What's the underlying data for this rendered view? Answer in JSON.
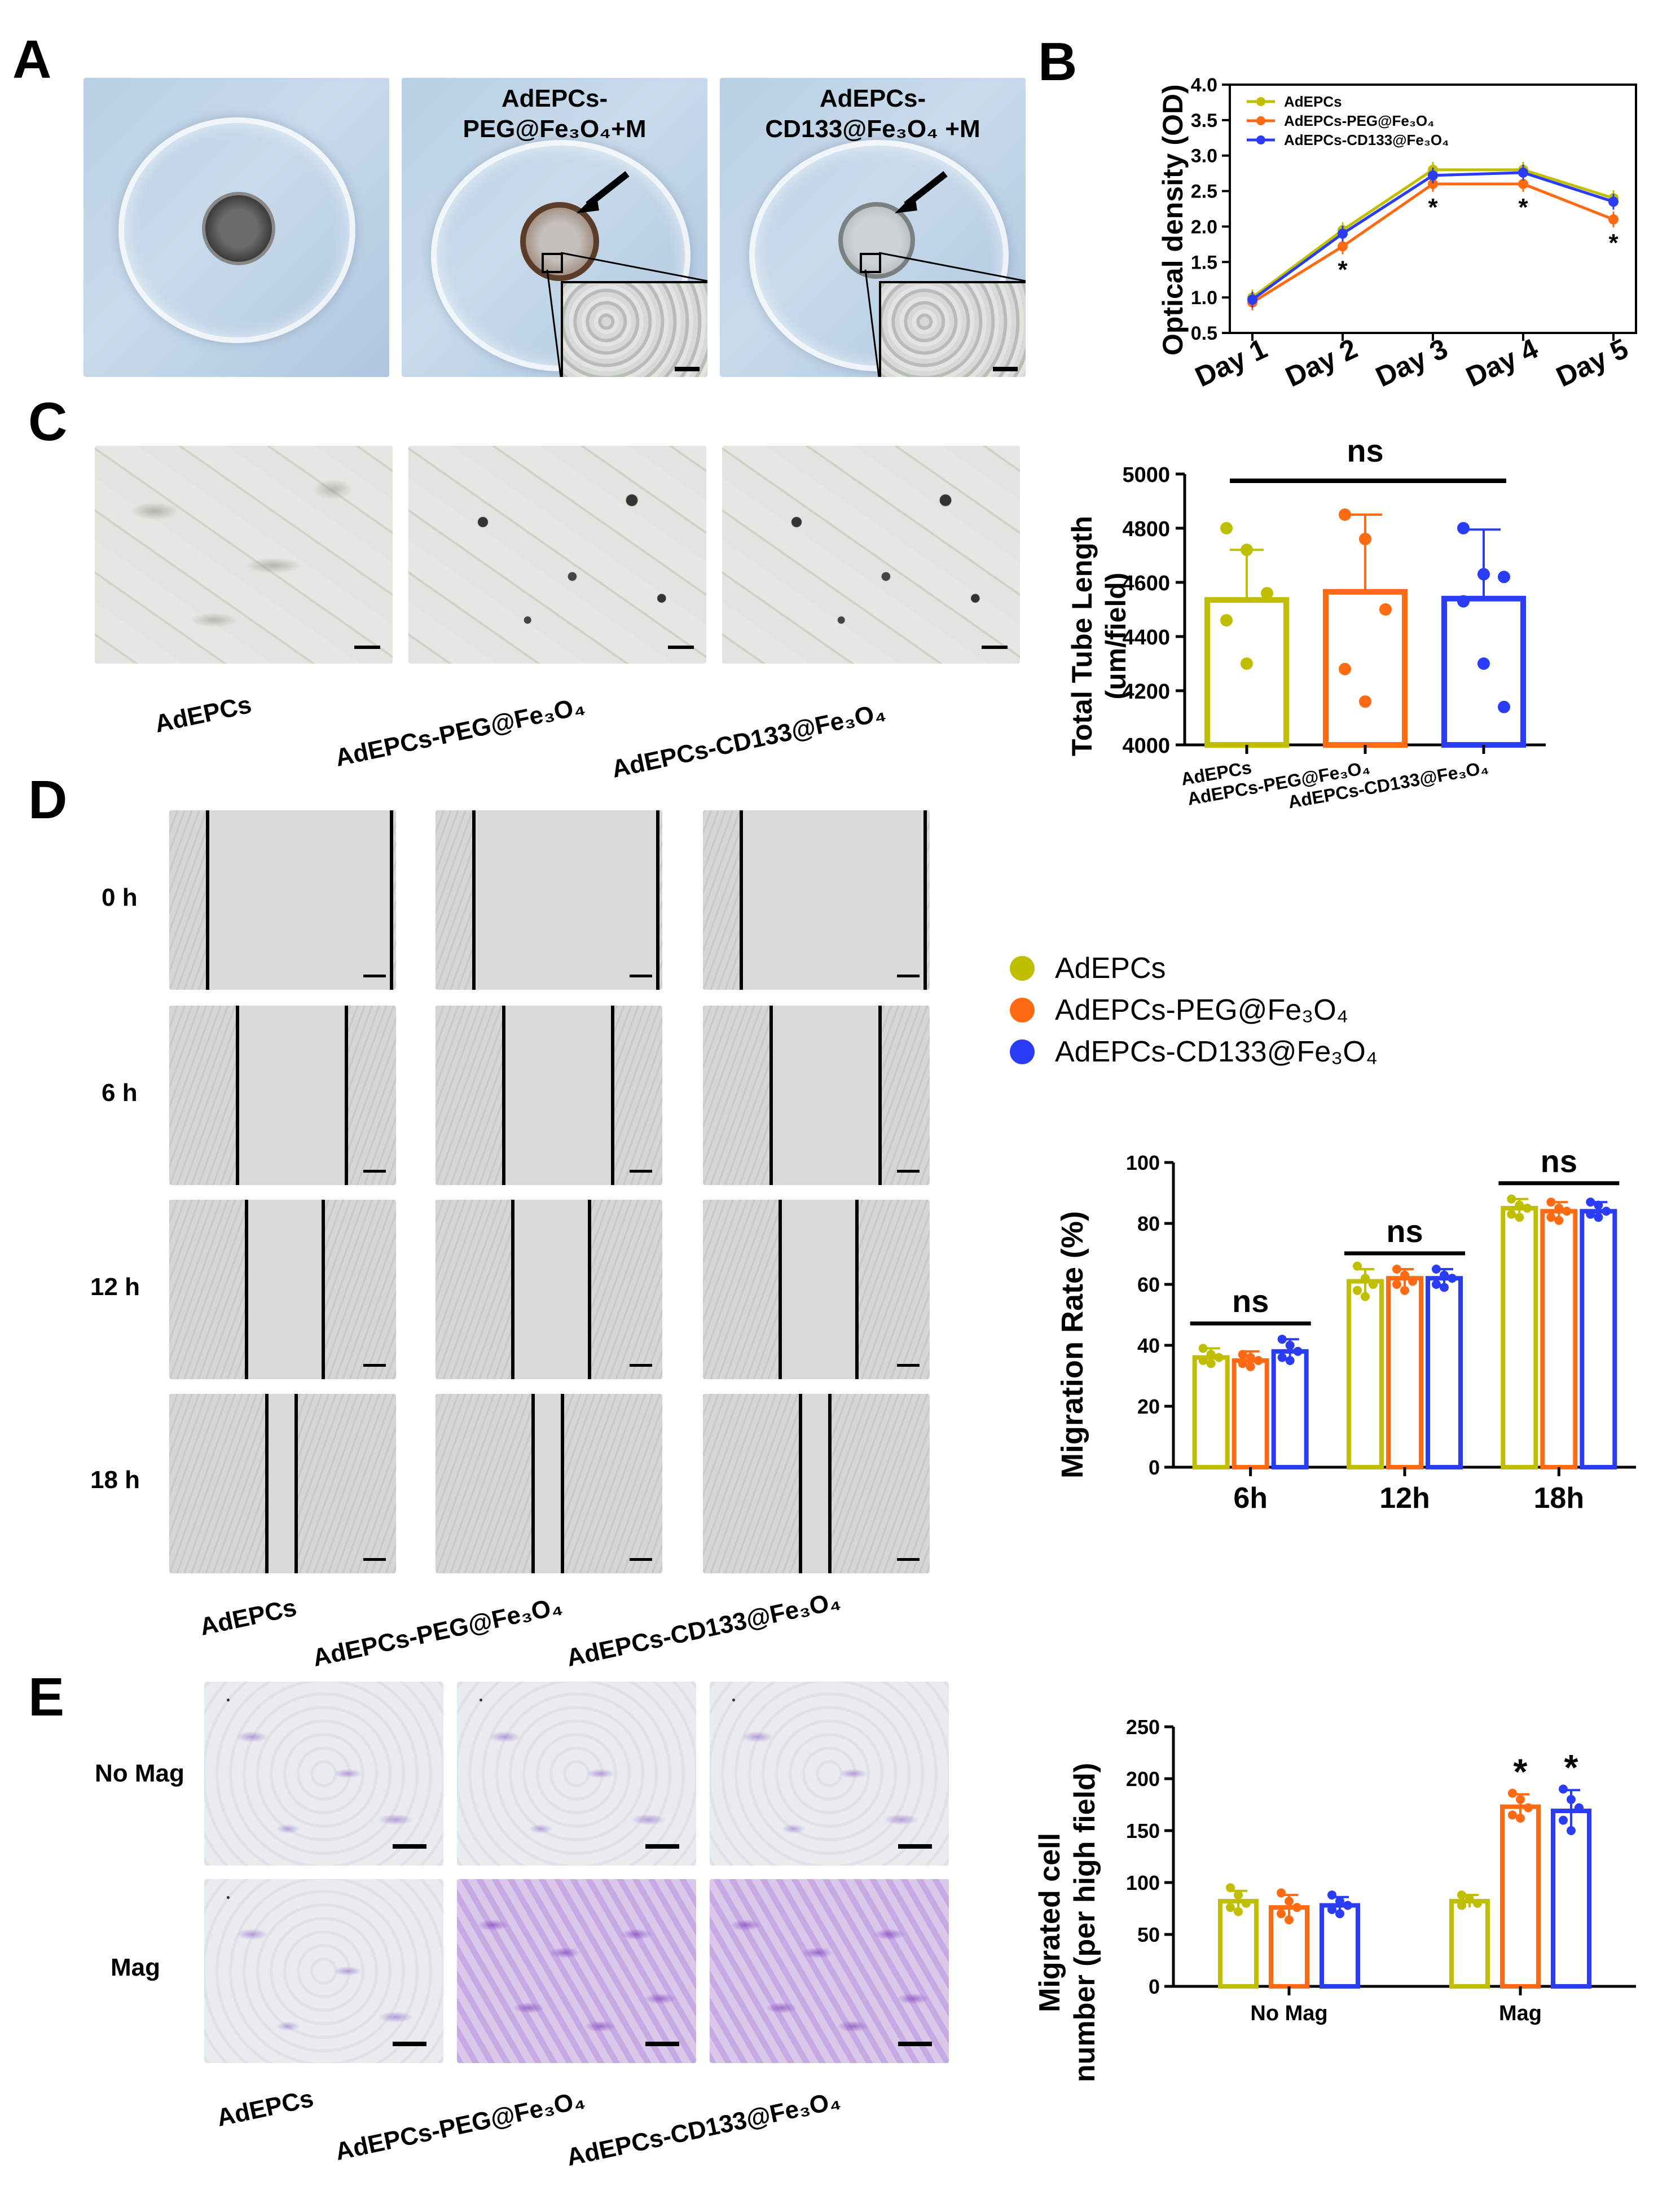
{
  "panels": {
    "A": "A",
    "B": "B",
    "C": "C",
    "D": "D",
    "E": "E"
  },
  "colors": {
    "adepcs": "#bfbf00",
    "peg": "#ff6a13",
    "cd133": "#2a3cf5"
  },
  "panelA": {
    "peg_title_line1": "AdEPCs-",
    "peg_title_line2": "PEG@Fe₃O₄+M",
    "cd133_title_line1": "AdEPCs-",
    "cd133_title_line2": "CD133@Fe₃O₄ +M"
  },
  "groups": {
    "adepcs": "AdEPCs",
    "peg": "AdEPCs-PEG@Fe₃O₄",
    "cd133": "AdEPCs-CD133@Fe₃O₄"
  },
  "panelD": {
    "rows": [
      "0 h",
      "6 h",
      "12 h",
      "18 h"
    ]
  },
  "panelE": {
    "rows": [
      "No Mag",
      "Mag"
    ]
  },
  "chart_data": [
    {
      "id": "B",
      "type": "line",
      "ylabel": "Optical density (OD)",
      "ylim": [
        0.5,
        4.0
      ],
      "yticks": [
        "0.5",
        "1.0",
        "1.5",
        "2.0",
        "2.5",
        "3.0",
        "3.5",
        "4.0"
      ],
      "categories": [
        "Day 1",
        "Day 2",
        "Day 3",
        "Day 4",
        "Day 5"
      ],
      "series": [
        {
          "name": "AdEPCs",
          "values": [
            1.0,
            1.95,
            2.8,
            2.8,
            2.4
          ]
        },
        {
          "name": "AdEPCs-PEG@Fe₃O₄",
          "values": [
            0.93,
            1.72,
            2.6,
            2.6,
            2.1
          ]
        },
        {
          "name": "AdEPCs-CD133@Fe₃O₄",
          "values": [
            0.97,
            1.9,
            2.72,
            2.76,
            2.35
          ]
        }
      ],
      "annotations": [
        {
          "category": "Day 2",
          "text": "*"
        },
        {
          "category": "Day 3",
          "text": "*"
        },
        {
          "category": "Day 4",
          "text": "*"
        },
        {
          "category": "Day 5",
          "text": "*"
        }
      ],
      "legend": "top-left"
    },
    {
      "id": "C",
      "type": "bar",
      "ylabel_line1": "Total Tube Length",
      "ylabel_line2": "(um/field)",
      "ylim": [
        4000,
        5000
      ],
      "yticks": [
        "4000",
        "4200",
        "4400",
        "4600",
        "4800",
        "5000"
      ],
      "categories": [
        "AdEPCs",
        "AdEPCs-PEG@Fe₃O₄",
        "AdEPCs-CD133@Fe₃O₄"
      ],
      "values": [
        4535,
        4565,
        4540
      ],
      "errors": [
        185,
        285,
        255
      ],
      "points": [
        [
          4800,
          4720,
          4560,
          4460,
          4300
        ],
        [
          4850,
          4760,
          4500,
          4280,
          4160
        ],
        [
          4800,
          4630,
          4620,
          4530,
          4300,
          4140
        ]
      ],
      "annotation": "ns"
    },
    {
      "id": "D",
      "type": "bar",
      "ylabel": "Migration Rate (%)",
      "ylim": [
        0,
        100
      ],
      "yticks": [
        "0",
        "20",
        "40",
        "60",
        "80",
        "100"
      ],
      "categories": [
        "6h",
        "12h",
        "18h"
      ],
      "series": [
        {
          "name": "AdEPCs",
          "values": [
            36,
            61,
            85
          ],
          "errors": [
            3,
            4,
            3
          ]
        },
        {
          "name": "AdEPCs-PEG@Fe₃O₄",
          "values": [
            35,
            62,
            84
          ],
          "errors": [
            3,
            3,
            3
          ]
        },
        {
          "name": "AdEPCs-CD133@Fe₃O₄",
          "values": [
            38,
            62,
            84
          ],
          "errors": [
            4,
            3,
            3
          ]
        }
      ],
      "points": [
        [
          [
            39,
            37,
            36,
            35,
            34
          ],
          [
            66,
            62,
            60,
            58,
            56
          ],
          [
            88,
            86,
            85,
            83,
            82
          ]
        ],
        [
          [
            37,
            36,
            35,
            34,
            33
          ],
          [
            65,
            63,
            61,
            60,
            58
          ],
          [
            87,
            85,
            84,
            82,
            81
          ]
        ],
        [
          [
            42,
            40,
            38,
            36,
            35
          ],
          [
            65,
            63,
            62,
            60,
            59
          ],
          [
            87,
            86,
            84,
            83,
            82
          ]
        ]
      ],
      "annotation": "ns",
      "legend": "top-right"
    },
    {
      "id": "E",
      "type": "bar",
      "ylabel_line1": "Migrated cell",
      "ylabel_line2": "number (per high field)",
      "ylim": [
        0,
        250
      ],
      "yticks": [
        "0",
        "50",
        "100",
        "150",
        "200",
        "250"
      ],
      "categories": [
        "No Mag",
        "Mag"
      ],
      "series": [
        {
          "name": "AdEPCs",
          "values": [
            82,
            82
          ],
          "errors": [
            10,
            6
          ]
        },
        {
          "name": "AdEPCs-PEG@Fe₃O₄",
          "values": [
            76,
            173
          ],
          "errors": [
            12,
            12
          ]
        },
        {
          "name": "AdEPCs-CD133@Fe₃O₄",
          "values": [
            78,
            169
          ],
          "errors": [
            8,
            20
          ]
        }
      ],
      "points": [
        [
          [
            95,
            88,
            80,
            76,
            72
          ],
          [
            88,
            84,
            80,
            78
          ]
        ],
        [
          [
            90,
            82,
            76,
            70,
            64
          ],
          [
            186,
            180,
            172,
            165,
            162
          ]
        ],
        [
          [
            88,
            82,
            78,
            74,
            70
          ],
          [
            190,
            180,
            172,
            160,
            150
          ]
        ]
      ],
      "annotations": [
        {
          "category": "Mag",
          "series": 1,
          "text": "*"
        },
        {
          "category": "Mag",
          "series": 2,
          "text": "*"
        }
      ]
    }
  ]
}
